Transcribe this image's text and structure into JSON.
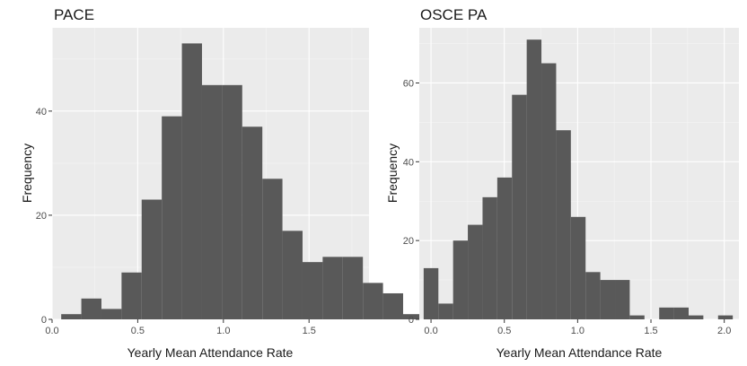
{
  "chart_data": [
    {
      "type": "bar",
      "title": "PACE",
      "xlabel": "Yearly Mean Attendance Rate",
      "ylabel": "Frequency",
      "xlim": [
        0.0,
        1.85
      ],
      "ylim": [
        0,
        56
      ],
      "xticks": [
        0.0,
        0.5,
        1.0,
        1.5
      ],
      "xtick_labels": [
        "0.0",
        "0.5",
        "1.0",
        "1.5"
      ],
      "yticks": [
        0,
        20,
        40
      ],
      "ytick_labels": [
        "0",
        "20",
        "40"
      ],
      "bin_width": 0.1174,
      "bin_start": 0.0533,
      "values": [
        1,
        4,
        2,
        9,
        23,
        39,
        53,
        45,
        45,
        37,
        27,
        17,
        11,
        12,
        12,
        7,
        5,
        1
      ],
      "grid": true,
      "bar_color": "#595959",
      "panel_color": "#ebebeb"
    },
    {
      "type": "bar",
      "title": "OSCE PA",
      "xlabel": "Yearly Mean Attendance Rate",
      "ylabel": "Frequency",
      "xlim": [
        -0.08,
        2.1
      ],
      "ylim": [
        0,
        74
      ],
      "xticks": [
        0.0,
        0.5,
        1.0,
        1.5,
        2.0
      ],
      "xtick_labels": [
        "0.0",
        "0.5",
        "1.0",
        "1.5",
        "2.0"
      ],
      "yticks": [
        0,
        20,
        40,
        60
      ],
      "ytick_labels": [
        "0",
        "20",
        "40",
        "60"
      ],
      "bin_width": 0.1004,
      "bin_start": -0.0502,
      "values": [
        13,
        4,
        20,
        24,
        31,
        36,
        57,
        71,
        65,
        48,
        26,
        12,
        10,
        10,
        1,
        0,
        3,
        3,
        1,
        0,
        1
      ],
      "grid": true,
      "bar_color": "#595959",
      "panel_color": "#ebebeb"
    }
  ]
}
